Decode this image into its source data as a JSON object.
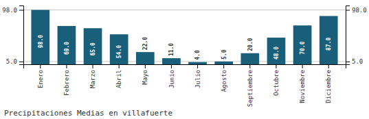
{
  "chart_data": {
    "type": "bar",
    "title": "Precipitaciones Medias en villafuerte",
    "categories": [
      "Enero",
      "Febrero",
      "Marzo",
      "Abril",
      "Mayo",
      "Junio",
      "Julio",
      "Agosto",
      "Septiembre",
      "Octubre",
      "Noviembre",
      "Diciembre"
    ],
    "values": [
      98.0,
      69.0,
      65.0,
      54.0,
      22.0,
      11.0,
      4.0,
      5.0,
      20.0,
      48.0,
      70.0,
      87.0
    ],
    "value_labels": [
      "98.0",
      "69.0",
      "65.0",
      "54.0",
      "22.0",
      "11.0",
      "4.0",
      "5.0",
      "20.0",
      "48.0",
      "70.0",
      "87.0"
    ],
    "data_labels": true,
    "color": "#1a5f7a",
    "ylim": [
      0,
      106
    ],
    "yticks": [
      {
        "value": 5,
        "label": "5.0"
      },
      {
        "value": 98,
        "label": "98.0"
      }
    ],
    "y2lim": [
      0,
      106
    ],
    "y2ticks": [
      {
        "value": 5,
        "label": "5.0"
      },
      {
        "value": 98,
        "label": "98.0"
      }
    ],
    "grid": true
  }
}
